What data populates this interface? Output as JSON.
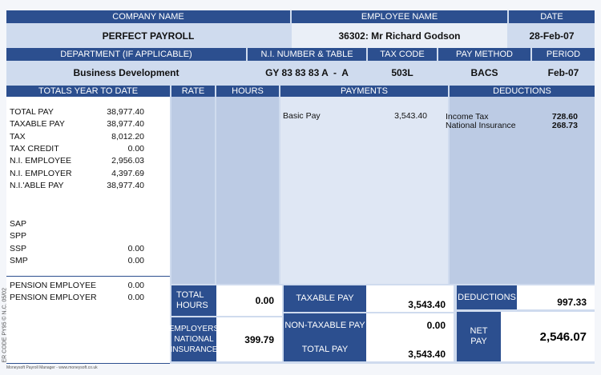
{
  "header": {
    "company_name_label": "COMPANY NAME",
    "company_name": "PERFECT PAYROLL",
    "employee_name_label": "EMPLOYEE NAME",
    "employee_name": "36302: Mr Richard Godson",
    "date_label": "DATE",
    "date": "28-Feb-07",
    "department_label": "DEPARTMENT (IF APPLICABLE)",
    "department": "Business Development",
    "ni_label": "N.I. NUMBER & TABLE",
    "ni": "GY 83 83 83 A  -  A",
    "tax_code_label": "TAX CODE",
    "tax_code": "503L",
    "pay_method_label": "PAY METHOD",
    "pay_method": "BACS",
    "period_label": "PERIOD",
    "period": "Feb-07"
  },
  "columns": {
    "ytd": "TOTALS YEAR TO DATE",
    "rate": "RATE",
    "hours": "HOURS",
    "payments": "PAYMENTS",
    "deductions": "DEDUCTIONS"
  },
  "ytd": [
    {
      "label": "TOTAL PAY",
      "value": "38,977.40"
    },
    {
      "label": "TAXABLE PAY",
      "value": "38,977.40"
    },
    {
      "label": "TAX",
      "value": "8,012.20"
    },
    {
      "label": "TAX CREDIT",
      "value": "0.00"
    },
    {
      "label": "N.I. EMPLOYEE",
      "value": "2,956.03"
    },
    {
      "label": "N.I. EMPLOYER",
      "value": "4,397.69"
    },
    {
      "label": "N.I.'ABLE PAY",
      "value": "38,977.40"
    }
  ],
  "statutory": [
    {
      "label": "SAP"
    },
    {
      "label": "SPP"
    },
    {
      "label": "SSP",
      "value": "0.00"
    },
    {
      "label": "SMP",
      "value": "0.00"
    }
  ],
  "pension": [
    {
      "label": "PENSION EMPLOYEE",
      "value": "0.00"
    },
    {
      "label": "PENSION EMPLOYER",
      "value": "0.00"
    }
  ],
  "payments": [
    {
      "label": "Basic Pay",
      "amount": "3,543.40"
    }
  ],
  "deductions": [
    {
      "label": "Income Tax",
      "amount": "728.60"
    },
    {
      "label": "National Insurance",
      "amount": "268.73"
    }
  ],
  "totals": {
    "total_hours_label": "TOTAL HOURS",
    "total_hours": "0.00",
    "employers_ni_label": "EMPLOYERS NATIONAL INSURANCE",
    "employers_ni": "399.79",
    "taxable_pay_label": "TAXABLE PAY",
    "taxable_pay": "3,543.40",
    "non_taxable_pay_label": "NON-TAXABLE PAY",
    "non_taxable_pay": "0.00",
    "total_pay_label": "TOTAL PAY",
    "total_pay": "3,543.40",
    "deductions_label": "DEDUCTIONS",
    "deductions": "997.33",
    "net_pay_label": "NET PAY",
    "net_pay": "2,546.07"
  },
  "footer": {
    "software": "Moneysoft Payroll Manager - www.moneysoft.co.uk",
    "order_code": "ER CODE PY95 © N.C. 05/02"
  }
}
